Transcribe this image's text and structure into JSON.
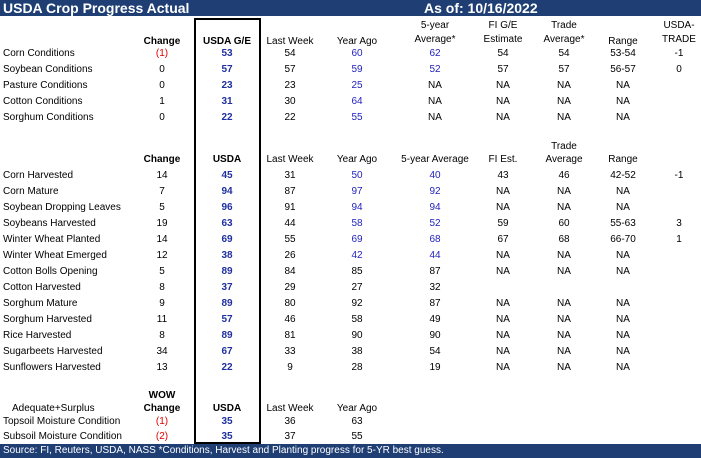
{
  "header": {
    "title": "USDA Crop Progress Actual",
    "asof": "As of:  10/16/2022"
  },
  "conditions": {
    "headers": {
      "change": "Change",
      "usda": "USDA G/E",
      "last_week": "Last Week",
      "year_ago": "Year Ago",
      "avg_l1": "5-year",
      "avg_l2": "Average*",
      "fi_l1": "FI G/E",
      "fi_l2": "Estimate",
      "trade_l1": "Trade",
      "trade_l2": "Average*",
      "range": "Range",
      "ut_l1": "USDA-",
      "ut_l2": "TRADE"
    },
    "rows": [
      {
        "label": "Corn Conditions",
        "change": "(1)",
        "usda": "53",
        "last": "54",
        "yago": "60",
        "avg": "62",
        "fi": "54",
        "trade": "54",
        "range": "53-54",
        "ut": "-1"
      },
      {
        "label": "Soybean Conditions",
        "change": "0",
        "usda": "57",
        "last": "57",
        "yago": "59",
        "avg": "52",
        "fi": "57",
        "trade": "57",
        "range": "56-57",
        "ut": "0"
      },
      {
        "label": "Pasture Conditions",
        "change": "0",
        "usda": "23",
        "last": "23",
        "yago": "25",
        "avg": "NA",
        "fi": "NA",
        "trade": "NA",
        "range": "NA",
        "ut": ""
      },
      {
        "label": "Cotton Conditions",
        "change": "1",
        "usda": "31",
        "last": "30",
        "yago": "64",
        "avg": "NA",
        "fi": "NA",
        "trade": "NA",
        "range": "NA",
        "ut": ""
      },
      {
        "label": "Sorghum Conditions",
        "change": "0",
        "usda": "22",
        "last": "22",
        "yago": "55",
        "avg": "NA",
        "fi": "NA",
        "trade": "NA",
        "range": "NA",
        "ut": ""
      }
    ]
  },
  "progress": {
    "headers": {
      "change": "Change",
      "usda": "USDA",
      "last_week": "Last Week",
      "year_ago": "Year Ago",
      "avg": "5-year Average",
      "fi": "FI Est.",
      "trade_l1": "Trade",
      "trade_l2": "Average",
      "range": "Range"
    },
    "rows": [
      {
        "label": "Corn Harvested",
        "change": "14",
        "usda": "45",
        "last": "31",
        "yago": "50",
        "avg": "40",
        "fi": "43",
        "trade": "46",
        "range": "42-52",
        "ut": "-1"
      },
      {
        "label": "Corn Mature",
        "change": "7",
        "usda": "94",
        "last": "87",
        "yago": "97",
        "avg": "92",
        "fi": "NA",
        "trade": "NA",
        "range": "NA",
        "ut": ""
      },
      {
        "label": "Soybean Dropping Leaves",
        "change": "5",
        "usda": "96",
        "last": "91",
        "yago": "94",
        "avg": "94",
        "fi": "NA",
        "trade": "NA",
        "range": "NA",
        "ut": ""
      },
      {
        "label": "Soybeans Harvested",
        "change": "19",
        "usda": "63",
        "last": "44",
        "yago": "58",
        "avg": "52",
        "fi": "59",
        "trade": "60",
        "range": "55-63",
        "ut": "3"
      },
      {
        "label": "Winter Wheat Planted",
        "change": "14",
        "usda": "69",
        "last": "55",
        "yago": "69",
        "avg": "68",
        "fi": "67",
        "trade": "68",
        "range": "66-70",
        "ut": "1"
      },
      {
        "label": "Winter Wheat Emerged",
        "change": "12",
        "usda": "38",
        "last": "26",
        "yago": "42",
        "avg": "44",
        "fi": "NA",
        "trade": "NA",
        "range": "NA",
        "ut": ""
      },
      {
        "label": "Cotton Bolls Opening",
        "change": "5",
        "usda": "89",
        "last": "84",
        "yago": "85",
        "avg": "87",
        "fi": "NA",
        "trade": "NA",
        "range": "NA",
        "ut": ""
      },
      {
        "label": "Cotton Harvested",
        "change": "8",
        "usda": "37",
        "last": "29",
        "yago": "27",
        "avg": "32",
        "fi": "",
        "trade": "",
        "range": "",
        "ut": ""
      },
      {
        "label": "Sorghum Mature",
        "change": "9",
        "usda": "89",
        "last": "80",
        "yago": "92",
        "avg": "87",
        "fi": "NA",
        "trade": "NA",
        "range": "NA",
        "ut": ""
      },
      {
        "label": "Sorghum Harvested",
        "change": "11",
        "usda": "57",
        "last": "46",
        "yago": "58",
        "avg": "49",
        "fi": "NA",
        "trade": "NA",
        "range": "NA",
        "ut": ""
      },
      {
        "label": "Rice Harvested",
        "change": "8",
        "usda": "89",
        "last": "81",
        "yago": "90",
        "avg": "90",
        "fi": "NA",
        "trade": "NA",
        "range": "NA",
        "ut": ""
      },
      {
        "label": "Sugarbeets Harvested",
        "change": "34",
        "usda": "67",
        "last": "33",
        "yago": "38",
        "avg": "54",
        "fi": "NA",
        "trade": "NA",
        "range": "NA",
        "ut": ""
      },
      {
        "label": "Sunflowers Harvested",
        "change": "13",
        "usda": "22",
        "last": "9",
        "yago": "28",
        "avg": "19",
        "fi": "NA",
        "trade": "NA",
        "range": "NA",
        "ut": ""
      }
    ]
  },
  "moisture": {
    "headers": {
      "wow": "WOW",
      "change": "Change",
      "section_label": "Adequate+Surplus",
      "usda": "USDA",
      "last_week": "Last Week",
      "year_ago": "Year Ago"
    },
    "rows": [
      {
        "label": "Topsoil Moisture Condition",
        "change": "(1)",
        "usda": "35",
        "last": "36",
        "yago": "63"
      },
      {
        "label": "Subsoil Moisture Condition",
        "change": "(2)",
        "usda": "35",
        "last": "37",
        "yago": "55"
      }
    ]
  },
  "footer": {
    "text": "Source: FI, Reuters, USDA, NASS     *Conditions, Harvest and Planting progress for 5-YR best guess."
  },
  "colors": {
    "header_bg": "#1f3f74",
    "blue": "#1f1fbf",
    "red": "#dd0000"
  }
}
